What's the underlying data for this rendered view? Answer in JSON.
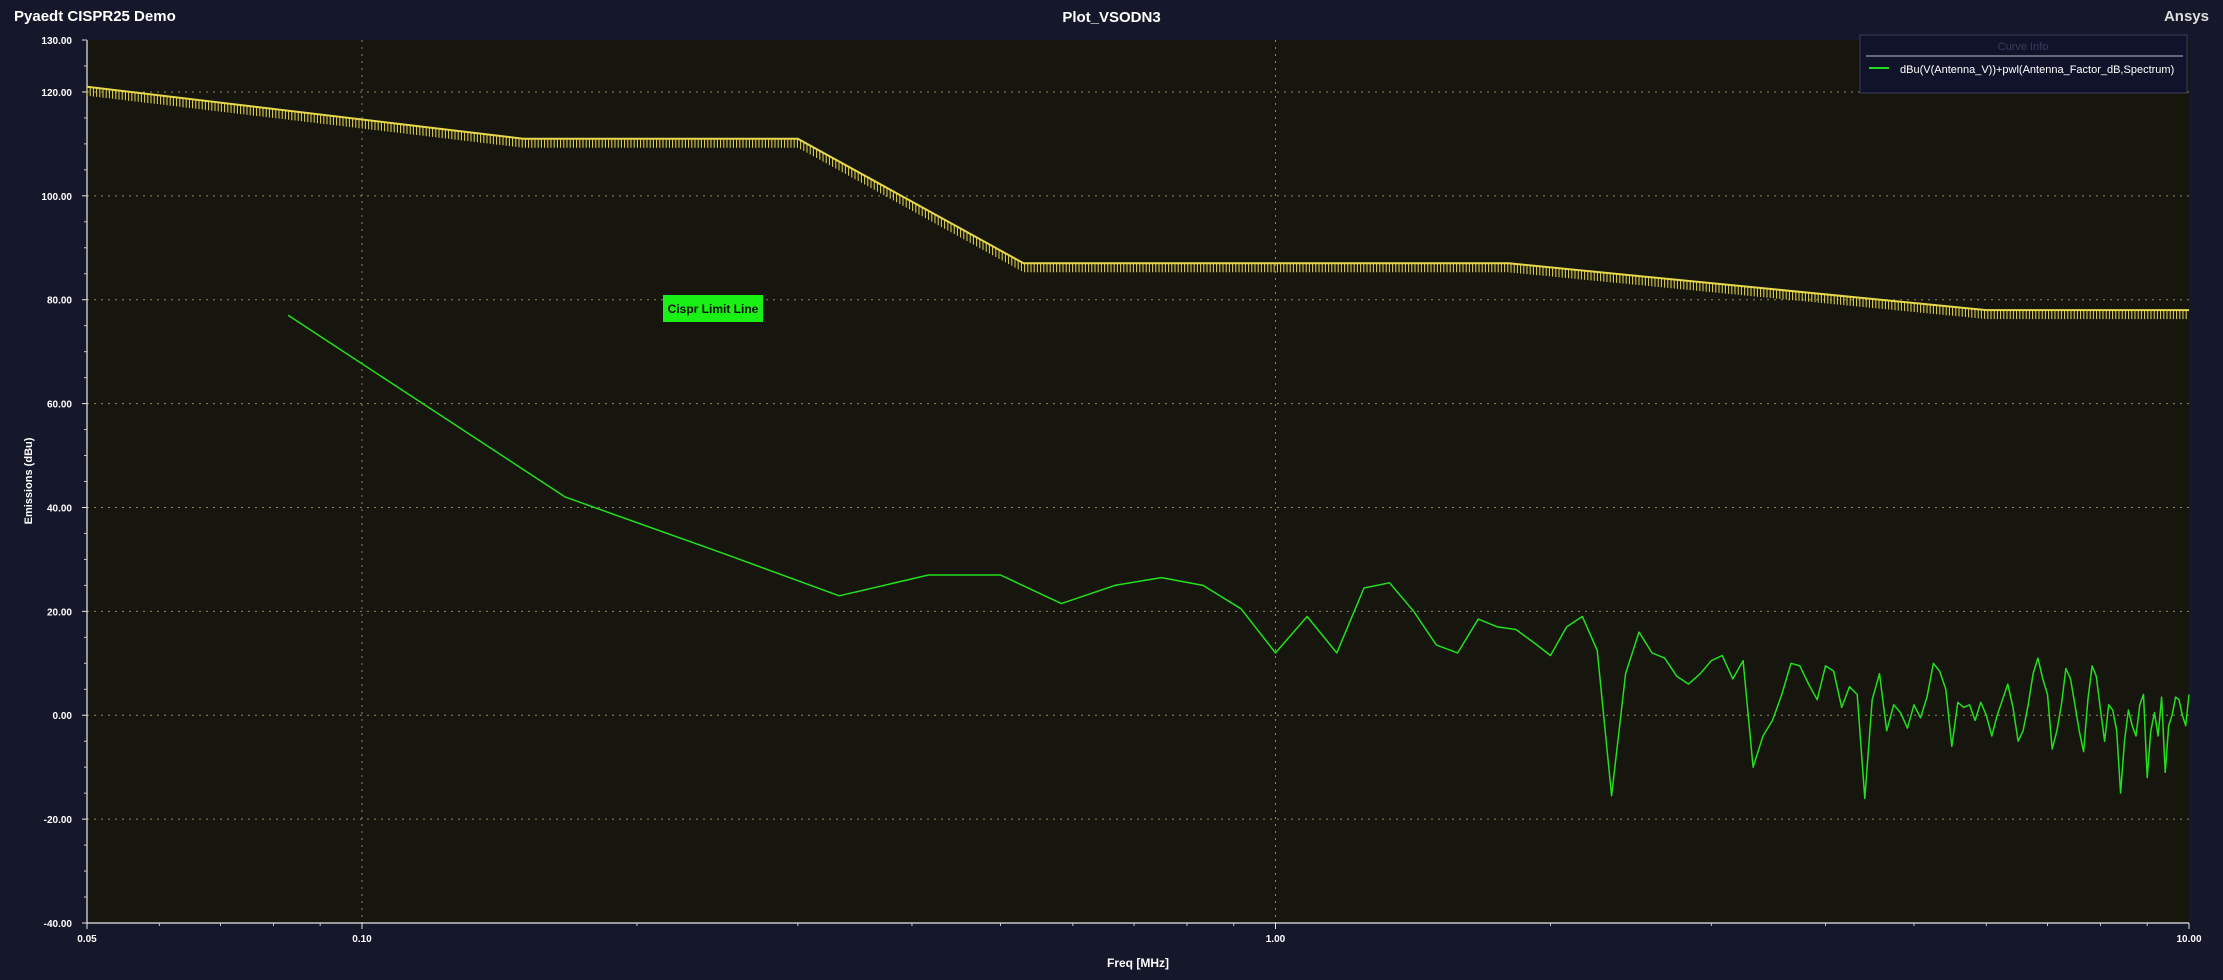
{
  "header": {
    "app_title": "Pyaedt CISPR25 Demo",
    "plot_title": "Plot_VSODN3",
    "brand": "Ansys"
  },
  "colors": {
    "background": "#15172a",
    "plot_area": "#16160f",
    "grid": "#8a8a55",
    "limit": "#e6d84a",
    "emission": "#22e01a",
    "annotation_bg": "#19f013"
  },
  "chart_data": {
    "type": "line",
    "title": "Plot_VSODN3",
    "xlabel": "Freq [MHz]",
    "ylabel": "Emissions (dBu)",
    "xscale": "log",
    "xlim": [
      0.05,
      10.0
    ],
    "ylim": [
      -40,
      130
    ],
    "xticks": [
      0.05,
      0.1,
      1.0,
      10.0
    ],
    "xtick_labels": [
      "0.05",
      "0.10",
      "1.00",
      "10.00"
    ],
    "yticks": [
      -40,
      -20,
      0,
      20,
      40,
      60,
      80,
      100,
      120,
      130
    ],
    "ytick_labels": [
      "-40.00",
      "-20.00",
      "0.00",
      "20.00",
      "40.00",
      "60.00",
      "80.00",
      "100.00",
      "120.00",
      "130.00"
    ],
    "grid": true,
    "legend_title": "Curve Info",
    "legend_position": "top-right",
    "annotation": "Cispr Limit Line",
    "limit_line": {
      "x": [
        0.05,
        0.15,
        0.3,
        0.53,
        1.0,
        1.8,
        6.0,
        10.0
      ],
      "y": [
        121,
        111,
        111,
        87,
        87,
        87,
        78,
        78
      ]
    },
    "series": [
      {
        "name": "dBu(V(Antenna_V))+pwl(Antenna_Factor_dB,Spectrum)",
        "x": [
          0.083,
          0.167,
          0.25,
          0.333,
          0.417,
          0.5,
          0.583,
          0.667,
          0.75,
          0.833,
          0.917,
          1.0,
          1.083,
          1.167,
          1.25,
          1.333,
          1.417,
          1.5,
          1.583,
          1.667,
          1.75,
          1.833,
          1.917,
          2.0,
          2.083,
          2.167,
          2.25,
          2.333,
          2.417,
          2.5,
          2.583,
          2.667,
          2.75,
          2.833,
          2.917,
          3.0,
          3.083,
          3.167,
          3.25,
          3.333,
          3.417,
          3.5,
          3.583,
          3.667,
          3.75,
          3.833,
          3.917,
          4.0,
          4.083,
          4.167,
          4.25,
          4.333,
          4.417,
          4.5,
          4.583,
          4.667,
          4.75,
          4.833,
          4.917,
          5.0,
          5.083,
          5.167,
          5.25,
          5.333,
          5.417,
          5.5,
          5.583,
          5.667,
          5.75,
          5.833,
          5.917,
          6.0,
          6.083,
          6.167,
          6.25,
          6.333,
          6.417,
          6.5,
          6.583,
          6.667,
          6.75,
          6.833,
          6.917,
          7.0,
          7.083,
          7.167,
          7.25,
          7.333,
          7.417,
          7.5,
          7.583,
          7.667,
          7.75,
          7.833,
          7.917,
          8.0,
          8.083,
          8.167,
          8.25,
          8.333,
          8.417,
          8.5,
          8.583,
          8.667,
          8.75,
          8.833,
          8.917,
          9.0,
          9.083,
          9.167,
          9.25,
          9.333,
          9.417,
          9.5,
          9.583,
          9.667,
          9.75,
          9.833,
          9.917,
          10.0
        ],
        "y": [
          77,
          42,
          31,
          23,
          27,
          27,
          21.5,
          25,
          26.5,
          25,
          20.5,
          12,
          19,
          12,
          24.5,
          25.5,
          20,
          13.5,
          12,
          18.5,
          17,
          16.5,
          14,
          11.5,
          17,
          19,
          12.5,
          -15.5,
          8,
          16,
          12,
          11,
          7.5,
          6,
          8,
          10.5,
          11.5,
          7,
          10.5,
          -10,
          -4,
          -1,
          4,
          10,
          9.5,
          6,
          3,
          9.5,
          8.5,
          1.5,
          5.5,
          4,
          -16,
          3,
          8,
          -3,
          2,
          0.5,
          -2.5,
          2,
          -0.5,
          3.5,
          10,
          8.5,
          5,
          -6,
          2.5,
          1.5,
          2,
          -1,
          2.5,
          0,
          -4,
          0,
          3,
          6,
          1.5,
          -5,
          -3,
          2,
          8,
          11,
          7,
          4,
          -6.5,
          -3,
          2,
          9,
          7,
          2,
          -3,
          -7,
          3,
          9.5,
          7.5,
          1,
          -5,
          2,
          1,
          -3,
          -15,
          -5,
          1,
          -2,
          -4,
          2,
          4,
          -12,
          -3,
          0.5,
          -4,
          3.5,
          -11,
          -2,
          0,
          3.5,
          3,
          0,
          -2,
          4
        ]
      }
    ]
  }
}
